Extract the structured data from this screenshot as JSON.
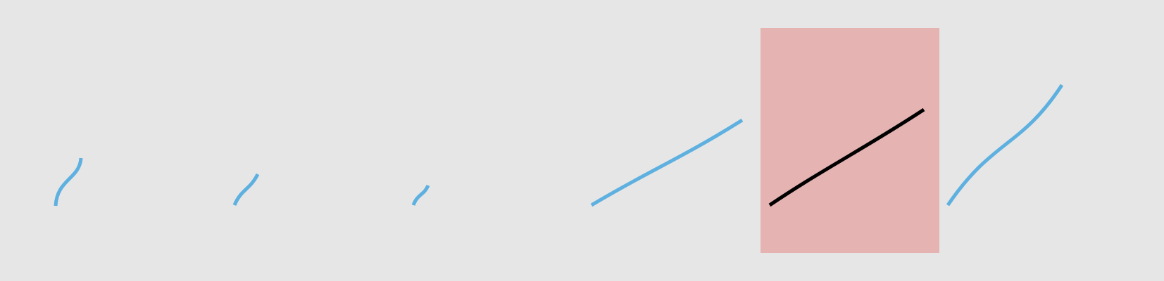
{
  "colors": {
    "background": "#e6e6e6",
    "stroke_default": "#5db0e0",
    "stroke_highlight": "#000000",
    "highlight_box_fill": "#e4b3b2"
  },
  "strokes": [
    {
      "name": "stroke-1",
      "highlighted": false
    },
    {
      "name": "stroke-2",
      "highlighted": false
    },
    {
      "name": "stroke-3",
      "highlighted": false
    },
    {
      "name": "stroke-4",
      "highlighted": false
    },
    {
      "name": "stroke-5",
      "highlighted": true
    },
    {
      "name": "stroke-6",
      "highlighted": false
    }
  ]
}
